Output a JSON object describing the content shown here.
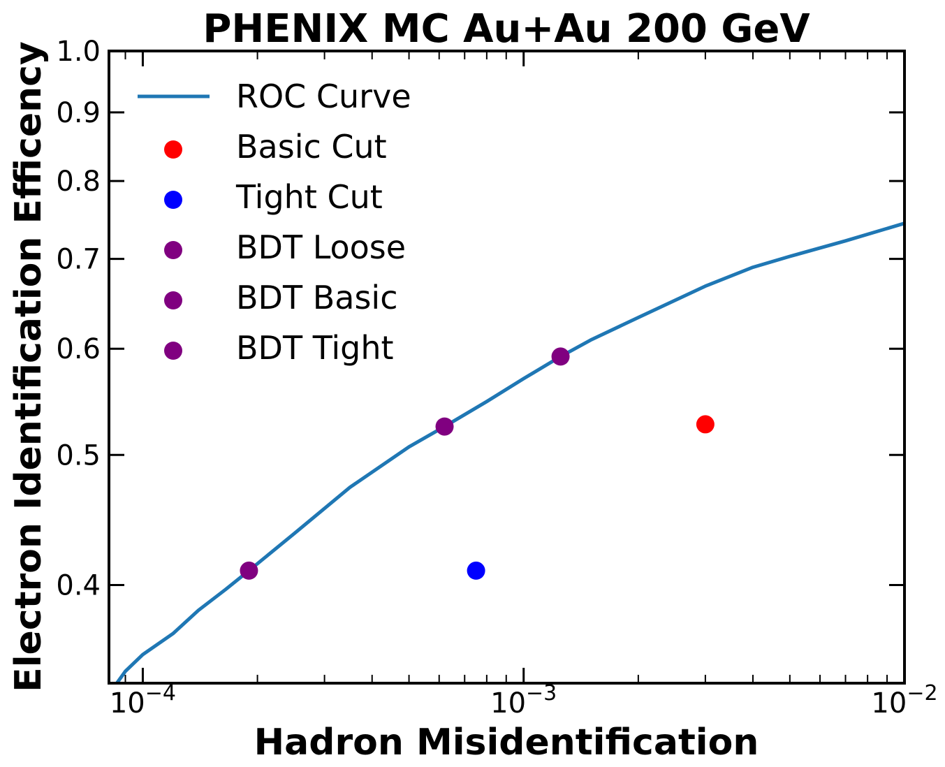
{
  "chart_data": {
    "type": "line",
    "title": "PHENIX MC Au+Au 200 GeV",
    "xlabel": "Hadron Misidentification",
    "ylabel": "Electron Identification Efficency",
    "xscale": "log",
    "yscale": "log",
    "xlim": [
      8.15e-05,
      0.01
    ],
    "ylim": [
      0.338,
      1.0
    ],
    "grid": false,
    "legend_position": "top-left",
    "y_ticks": [
      "0.4",
      "0.5",
      "0.6",
      "0.7",
      "0.8",
      "0.9",
      "1.0"
    ],
    "x_ticks": [
      {
        "base": "10",
        "exp": "−4"
      },
      {
        "base": "10",
        "exp": "−3"
      },
      {
        "base": "10",
        "exp": "−2"
      }
    ],
    "series": [
      {
        "name": "ROC Curve",
        "kind": "line",
        "color": "#1f77b4",
        "x": [
          8.55e-05,
          9e-05,
          0.0001,
          0.00012,
          0.00014,
          0.000165,
          0.00019,
          0.00025,
          0.00035,
          0.0005,
          0.00062,
          0.0008,
          0.001,
          0.00125,
          0.0015,
          0.002,
          0.003,
          0.004,
          0.005,
          0.007,
          0.01
        ],
        "y": [
          0.338,
          0.345,
          0.355,
          0.368,
          0.383,
          0.397,
          0.41,
          0.437,
          0.473,
          0.507,
          0.525,
          0.548,
          0.57,
          0.592,
          0.609,
          0.633,
          0.668,
          0.69,
          0.703,
          0.722,
          0.744
        ]
      },
      {
        "name": "Basic Cut",
        "kind": "scatter",
        "color": "#ff0000",
        "x": [
          0.003
        ],
        "y": [
          0.527
        ]
      },
      {
        "name": "Tight Cut",
        "kind": "scatter",
        "color": "#0000ff",
        "x": [
          0.00075
        ],
        "y": [
          0.41
        ]
      },
      {
        "name": "BDT Loose",
        "kind": "scatter",
        "color": "#800080",
        "x": [
          0.00019
        ],
        "y": [
          0.41
        ]
      },
      {
        "name": "BDT Basic",
        "kind": "scatter",
        "color": "#800080",
        "x": [
          0.00062
        ],
        "y": [
          0.525
        ]
      },
      {
        "name": "BDT Tight",
        "kind": "scatter",
        "color": "#800080",
        "x": [
          0.00125
        ],
        "y": [
          0.592
        ]
      }
    ]
  }
}
